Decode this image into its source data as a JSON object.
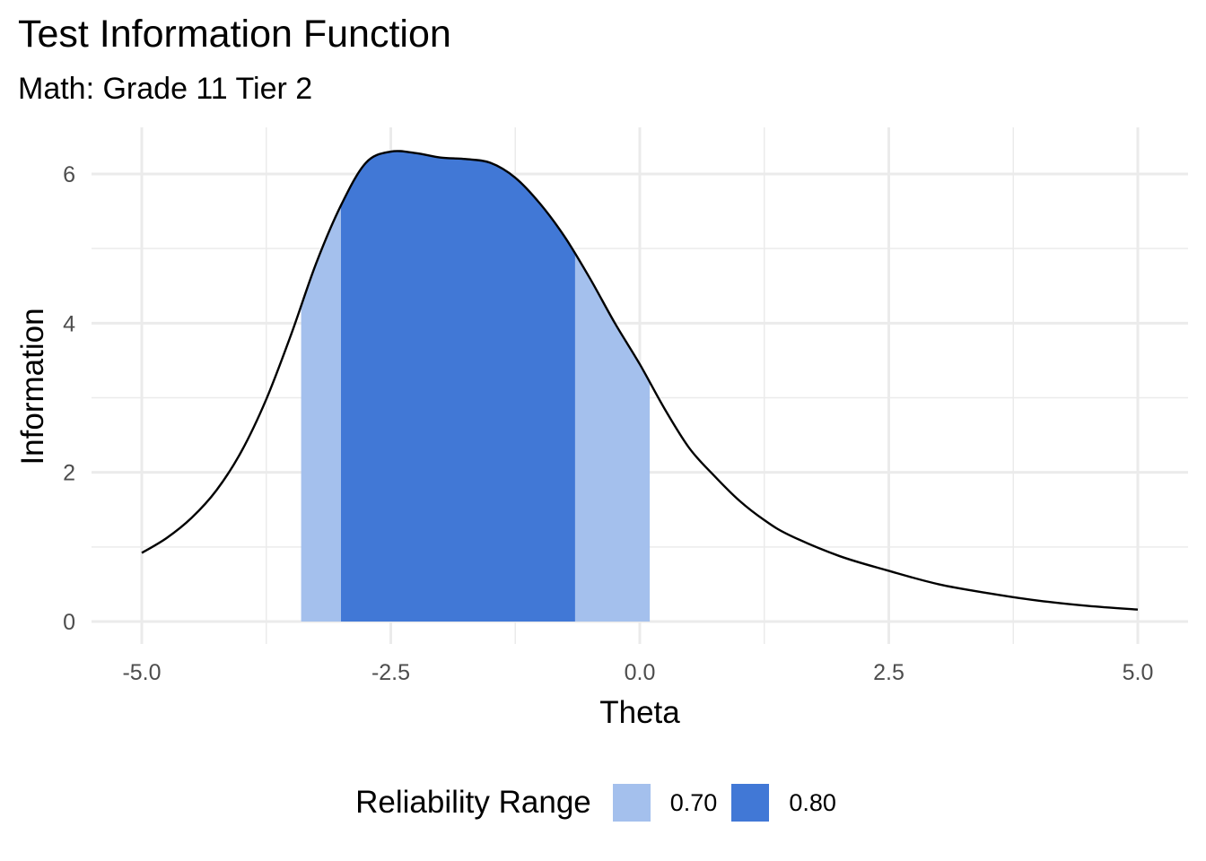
{
  "chart_data": {
    "type": "area",
    "title": "Test Information Function",
    "subtitle": "Math: Grade 11 Tier 2",
    "xlabel": "Theta",
    "ylabel": "Information",
    "xlim": [
      -5.0,
      5.0
    ],
    "ylim": [
      0,
      6.5
    ],
    "x_ticks": [
      "-5.0",
      "-2.5",
      "0.0",
      "2.5",
      "5.0"
    ],
    "y_ticks": [
      "0",
      "2",
      "4",
      "6"
    ],
    "grid": true,
    "legend": {
      "title": "Reliability Range",
      "position": "bottom",
      "entries": [
        {
          "label": "0.70",
          "color": "#a4c0ed"
        },
        {
          "label": "0.80",
          "color": "#4178d6"
        }
      ]
    },
    "curve": {
      "x": [
        -5.0,
        -4.75,
        -4.5,
        -4.25,
        -4.0,
        -3.75,
        -3.5,
        -3.25,
        -3.0,
        -2.75,
        -2.5,
        -2.25,
        -2.0,
        -1.75,
        -1.5,
        -1.25,
        -1.0,
        -0.75,
        -0.5,
        -0.25,
        0.0,
        0.25,
        0.5,
        0.75,
        1.0,
        1.25,
        1.5,
        2.0,
        2.5,
        3.0,
        3.5,
        4.0,
        4.5,
        5.0
      ],
      "y": [
        0.92,
        1.12,
        1.39,
        1.76,
        2.28,
        2.98,
        3.85,
        4.8,
        5.58,
        6.15,
        6.3,
        6.28,
        6.22,
        6.2,
        6.15,
        5.95,
        5.6,
        5.15,
        4.6,
        4.0,
        3.45,
        2.85,
        2.32,
        1.95,
        1.62,
        1.36,
        1.16,
        0.88,
        0.68,
        0.5,
        0.38,
        0.28,
        0.21,
        0.16
      ]
    },
    "bands": [
      {
        "name": "0.70",
        "x_range": [
          -3.4,
          0.1
        ],
        "color": "#a4c0ed"
      },
      {
        "name": "0.80",
        "x_range": [
          -3.0,
          -0.65
        ],
        "color": "#4178d6"
      }
    ]
  }
}
